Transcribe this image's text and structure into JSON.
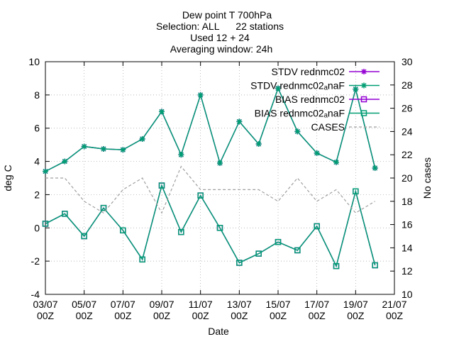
{
  "chart_data": {
    "type": "line",
    "title_lines": [
      "Dew point T 700hPa",
      "Selection: ALL      22 stations",
      "Used 12 + 24",
      "Averaging window: 24h"
    ],
    "xlabel": "Date",
    "ylabel": "deg C",
    "y2label": "No cases",
    "ylim": [
      -4,
      10
    ],
    "y2lim": [
      10,
      30
    ],
    "y_ticks": [
      "-4",
      "-2",
      "0",
      "2",
      "4",
      "6",
      "8",
      "10"
    ],
    "y2_ticks": [
      "10",
      "12",
      "14",
      "16",
      "18",
      "20",
      "22",
      "24",
      "26",
      "28",
      "30"
    ],
    "x_ticks": [
      {
        "x": 0,
        "line1": "03/07",
        "line2": "00Z"
      },
      {
        "x": 2,
        "line1": "05/07",
        "line2": "00Z"
      },
      {
        "x": 4,
        "line1": "07/07",
        "line2": "00Z"
      },
      {
        "x": 6,
        "line1": "09/07",
        "line2": "00Z"
      },
      {
        "x": 8,
        "line1": "11/07",
        "line2": "00Z"
      },
      {
        "x": 10,
        "line1": "13/07",
        "line2": "00Z"
      },
      {
        "x": 12,
        "line1": "15/07",
        "line2": "00Z"
      },
      {
        "x": 14,
        "line1": "17/07",
        "line2": "00Z"
      },
      {
        "x": 16,
        "line1": "19/07",
        "line2": "00Z"
      },
      {
        "x": 18,
        "line1": "21/07",
        "line2": "00Z"
      }
    ],
    "xlim": [
      0,
      18
    ],
    "legend_placement": "top-right",
    "x": [
      0,
      1,
      2,
      3,
      4,
      5,
      6,
      7,
      8,
      9,
      10,
      11,
      12,
      13,
      14,
      15,
      16,
      17
    ],
    "series": [
      {
        "name": "STDV rednmc02",
        "color": "#9400d3",
        "marker": "star",
        "axis": "y",
        "values": [
          3.4,
          4.0,
          4.9,
          4.75,
          4.7,
          5.35,
          7.0,
          4.4,
          8.0,
          3.9,
          6.4,
          5.05,
          8.4,
          5.8,
          4.5,
          3.95,
          8.35,
          3.6
        ]
      },
      {
        "name": "STDV rednmc02ₐnaF",
        "color": "#009e73",
        "marker": "star",
        "axis": "y",
        "values": [
          3.4,
          4.0,
          4.9,
          4.75,
          4.7,
          5.35,
          7.0,
          4.4,
          8.0,
          3.9,
          6.4,
          5.05,
          8.4,
          5.8,
          4.5,
          3.95,
          8.35,
          3.6
        ]
      },
      {
        "name": "BIAS rednmc02",
        "color": "#9400d3",
        "marker": "square",
        "axis": "y",
        "values": [
          0.25,
          0.85,
          -0.5,
          1.2,
          -0.15,
          -1.9,
          2.55,
          -0.25,
          1.95,
          0.0,
          -2.1,
          -1.55,
          -0.85,
          -1.35,
          0.1,
          -2.3,
          2.2,
          -2.25
        ]
      },
      {
        "name": "BIAS rednmc02ₐnaF",
        "color": "#009e73",
        "marker": "square",
        "axis": "y",
        "values": [
          0.25,
          0.85,
          -0.5,
          1.2,
          -0.15,
          -1.9,
          2.55,
          -0.25,
          1.95,
          0.0,
          -2.1,
          -1.55,
          -0.85,
          -1.35,
          0.1,
          -2.3,
          2.2,
          -2.25
        ]
      },
      {
        "name": "CASES",
        "color": "#a0a0a0",
        "marker": "none",
        "dashed": true,
        "axis": "y2",
        "values": [
          20,
          20,
          18,
          17,
          19,
          20,
          17,
          21,
          19,
          19,
          19,
          19,
          18,
          20,
          18,
          19,
          17,
          18
        ]
      }
    ]
  }
}
